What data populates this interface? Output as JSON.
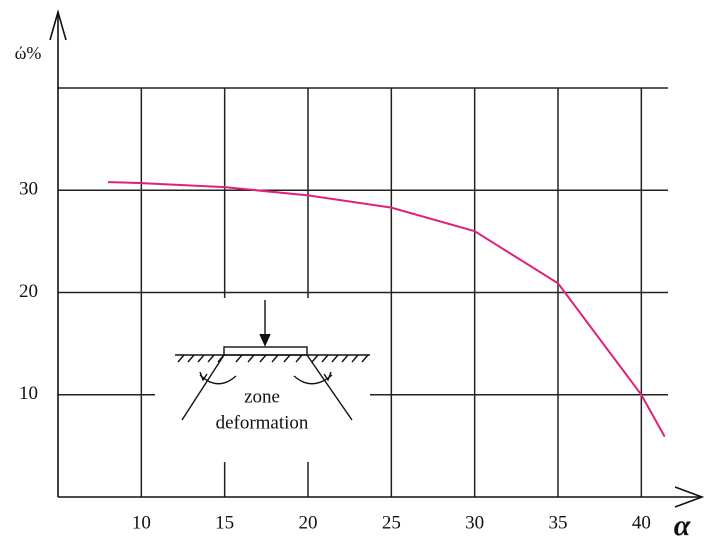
{
  "chart_data": {
    "type": "line",
    "x_label": "α",
    "y_label": "ώ%",
    "annotation": [
      "zone",
      "deformation"
    ],
    "xlim": [
      5,
      41.6
    ],
    "ylim": [
      0,
      40
    ],
    "xticks": [
      10,
      15,
      20,
      25,
      30,
      35,
      40
    ],
    "yticks": [
      10,
      20,
      30,
      {
        "value": 40,
        "label": null
      }
    ],
    "grid": true,
    "series": [
      {
        "name": null,
        "color": "#e0207a",
        "x": [
          8,
          10,
          15,
          20,
          25,
          30,
          35,
          40,
          41.4
        ],
        "values": [
          30.8,
          30.7,
          30.3,
          29.5,
          28.3,
          26,
          20.9,
          10,
          5.9
        ]
      }
    ]
  }
}
